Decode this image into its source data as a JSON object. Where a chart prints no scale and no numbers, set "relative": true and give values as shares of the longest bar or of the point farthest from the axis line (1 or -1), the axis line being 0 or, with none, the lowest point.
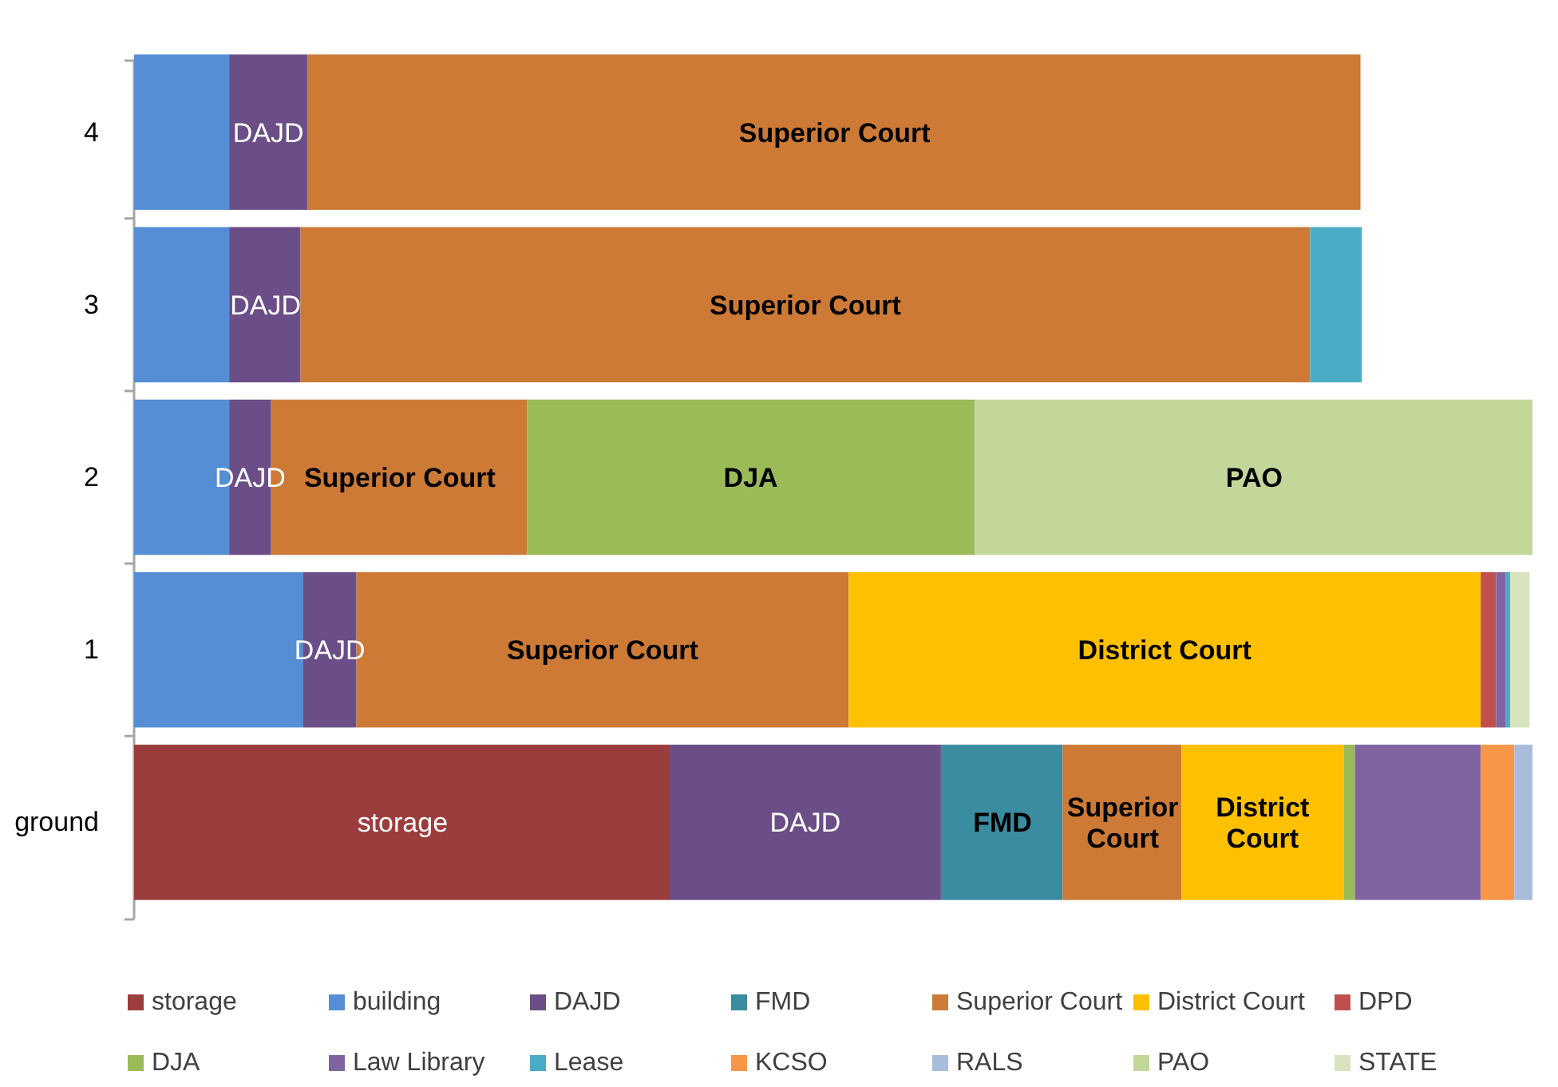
{
  "chart_data": {
    "type": "bar",
    "orientation": "horizontal",
    "stacked": true,
    "relative": true,
    "legend": "bottom",
    "categories": [
      "4",
      "3",
      "2",
      "1",
      "ground"
    ],
    "series": [
      {
        "name": "storage",
        "color": "#9b3d3d",
        "values": [
          null,
          null,
          null,
          null,
          0.383
        ]
      },
      {
        "name": "building",
        "color": "#558ed5",
        "values": [
          0.068,
          0.068,
          0.068,
          0.121,
          null
        ]
      },
      {
        "name": "DAJD",
        "color": "#6b4e87",
        "values": [
          0.056,
          0.051,
          0.03,
          0.038,
          0.194
        ]
      },
      {
        "name": "FMD",
        "color": "#3a8ca0",
        "values": [
          null,
          null,
          null,
          null,
          0.087
        ]
      },
      {
        "name": "Superior Court",
        "color": "#cc7a36",
        "values": [
          0.753,
          0.722,
          0.183,
          0.352,
          0.085
        ]
      },
      {
        "name": "District Court",
        "color": "#ffc000",
        "values": [
          null,
          null,
          null,
          0.452,
          0.116
        ]
      },
      {
        "name": "DPD",
        "color": "#c0504d",
        "values": [
          null,
          null,
          null,
          0.011,
          null
        ]
      },
      {
        "name": "DJA",
        "color": "#9bbb59",
        "values": [
          null,
          null,
          0.32,
          null,
          0.008
        ]
      },
      {
        "name": "Law Library",
        "color": "#8064a2",
        "values": [
          null,
          null,
          null,
          0.007,
          0.09
        ]
      },
      {
        "name": "Lease",
        "color": "#4bacc6",
        "values": [
          null,
          0.037,
          null,
          0.003,
          null
        ]
      },
      {
        "name": "KCSO",
        "color": "#f79646",
        "values": [
          null,
          null,
          null,
          null,
          0.024
        ]
      },
      {
        "name": "RALS",
        "color": "#a9bcdc",
        "values": [
          null,
          null,
          null,
          null,
          0.013
        ]
      },
      {
        "name": "PAO",
        "color": "#c4d79b",
        "values": [
          null,
          null,
          0.399,
          null,
          null
        ]
      },
      {
        "name": "STATE",
        "color": "#d7e4bd",
        "values": [
          null,
          null,
          null,
          0.014,
          null
        ]
      }
    ],
    "annotations": [
      {
        "text": "DAJD",
        "x": 0.096,
        "y": "4"
      },
      {
        "text": "Superior Court",
        "x": 0.501,
        "y": "4"
      },
      {
        "text": "DAJD",
        "x": 0.094,
        "y": "3"
      },
      {
        "text": "Superior Court",
        "x": 0.48,
        "y": "3"
      },
      {
        "text": "DAJD",
        "x": 0.083,
        "y": "2"
      },
      {
        "text": "Superior Court",
        "x": 0.19,
        "y": "2"
      },
      {
        "text": "DJA",
        "x": 0.441,
        "y": "2"
      },
      {
        "text": "PAO",
        "x": 0.801,
        "y": "2"
      },
      {
        "text": "DAJD",
        "x": 0.14,
        "y": "1"
      },
      {
        "text": "Superior Court",
        "x": 0.335,
        "y": "1"
      },
      {
        "text": "District Court",
        "x": 0.737,
        "y": "1"
      },
      {
        "text": "storage",
        "x": 0.192,
        "y": "ground"
      },
      {
        "text": "DAJD",
        "x": 0.48,
        "y": "ground"
      },
      {
        "text": "FMD",
        "x": 0.621,
        "y": "ground"
      },
      {
        "text": "Superior\nCourt",
        "x": 0.707,
        "y": "ground"
      },
      {
        "text": "District\nCourt",
        "x": 0.807,
        "y": "ground"
      }
    ]
  }
}
